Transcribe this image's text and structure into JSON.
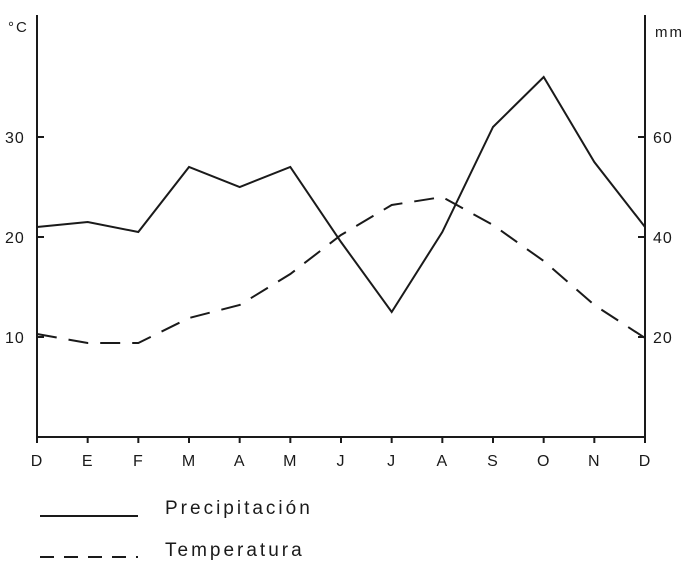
{
  "chart_data": {
    "type": "line",
    "categories": [
      "D",
      "E",
      "F",
      "M",
      "A",
      "M",
      "J",
      "J",
      "A",
      "S",
      "O",
      "N",
      "D"
    ],
    "y_left": {
      "unit": "°C",
      "ylim": [
        0,
        40
      ],
      "ticks": [
        10,
        20,
        30
      ]
    },
    "y_right": {
      "unit": "mm",
      "ylim": [
        0,
        80
      ],
      "ticks": [
        20,
        40,
        60
      ]
    },
    "series": [
      {
        "name": "Precipitación",
        "axis": "right",
        "style": "solid",
        "values": [
          42,
          43,
          41,
          54,
          50,
          54,
          39,
          25,
          41,
          62,
          72,
          55,
          42
        ]
      },
      {
        "name": "Temperatura",
        "axis": "left",
        "style": "dashed",
        "values": [
          10.3,
          9.4,
          9.4,
          11.9,
          13.2,
          16.3,
          20.2,
          23.2,
          24.0,
          21.2,
          17.6,
          13.2,
          9.9
        ]
      }
    ],
    "grid": false,
    "legend": {
      "position": "bottom-left"
    }
  }
}
